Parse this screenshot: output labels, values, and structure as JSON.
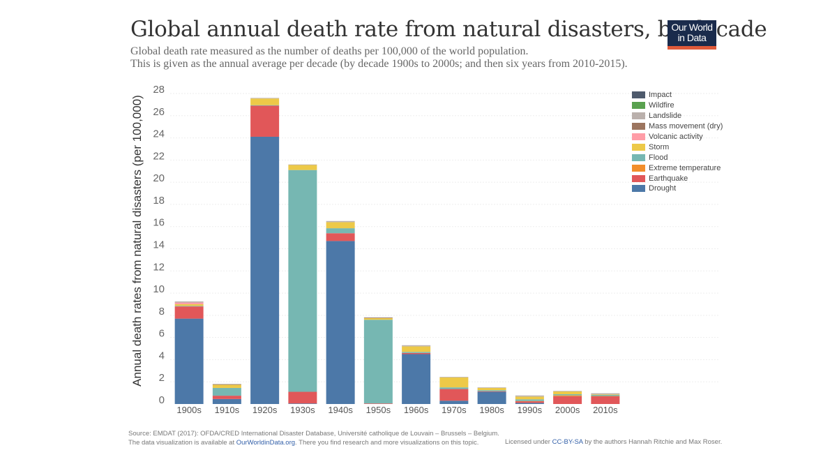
{
  "header": {
    "title": "Global annual death rate from natural disasters, by decade",
    "subtitle_line1": "Global death rate measured as the number of deaths per 100,000 of the world population.",
    "subtitle_line2": "This is given as the annual average per decade (by decade 1900s to 2000s; and then six years from 2010-2015).",
    "logo_line1": "Our World",
    "logo_line2": "in Data"
  },
  "footer": {
    "source": "Source: EMDAT (2017): OFDA/CRED International Disaster Database, Université catholique de Louvain – Brussels – Belgium.",
    "availability_prefix": "The data visualization is available at ",
    "availability_link": "OurWorldinData.org",
    "availability_suffix": ". There you find research and more visualizations on this topic.",
    "license_prefix": "Licensed under ",
    "license_link": "CC-BY-SA",
    "license_suffix": " by the authors Hannah Ritchie and Max Roser."
  },
  "chart_data": {
    "type": "bar",
    "stacked": true,
    "title": "Global annual death rate from natural disasters, by decade",
    "xlabel": "",
    "ylabel": "Annual death rates from natural disasters (per 100,000)",
    "ylim": [
      0,
      28
    ],
    "yticks": [
      0,
      2,
      4,
      6,
      8,
      10,
      12,
      14,
      16,
      18,
      20,
      22,
      24,
      26,
      28
    ],
    "grid": true,
    "legend_position": "right",
    "categories": [
      "1900s",
      "1910s",
      "1920s",
      "1930s",
      "1940s",
      "1950s",
      "1960s",
      "1970s",
      "1980s",
      "1990s",
      "2000s",
      "2010s"
    ],
    "series": [
      {
        "name": "Drought",
        "color": "#4c78a8",
        "values": [
          7.7,
          0.45,
          24.1,
          0.05,
          14.7,
          0.0,
          4.5,
          0.3,
          1.1,
          0.1,
          0.0,
          0.0
        ]
      },
      {
        "name": "Earthquake",
        "color": "#e15759",
        "values": [
          1.1,
          0.3,
          2.8,
          1.05,
          0.7,
          0.05,
          0.1,
          1.05,
          0.05,
          0.15,
          0.7,
          0.7
        ]
      },
      {
        "name": "Extreme temperature",
        "color": "#f28e2b",
        "values": [
          0.0,
          0.0,
          0.0,
          0.0,
          0.0,
          0.0,
          0.0,
          0.0,
          0.0,
          0.02,
          0.08,
          0.02
        ]
      },
      {
        "name": "Flood",
        "color": "#76b7b2",
        "values": [
          0.05,
          0.7,
          0.05,
          20.0,
          0.45,
          7.55,
          0.1,
          0.15,
          0.1,
          0.15,
          0.1,
          0.1
        ]
      },
      {
        "name": "Storm",
        "color": "#edc948",
        "values": [
          0.15,
          0.3,
          0.6,
          0.45,
          0.55,
          0.15,
          0.5,
          0.9,
          0.2,
          0.25,
          0.25,
          0.05
        ]
      },
      {
        "name": "Volcanic activity",
        "color": "#ff9da7",
        "values": [
          0.15,
          0.0,
          0.0,
          0.0,
          0.0,
          0.0,
          0.0,
          0.0,
          0.0,
          0.0,
          0.0,
          0.0
        ]
      },
      {
        "name": "Mass movement (dry)",
        "color": "#9c755f",
        "values": [
          0.0,
          0.02,
          0.0,
          0.0,
          0.0,
          0.02,
          0.0,
          0.0,
          0.0,
          0.0,
          0.0,
          0.0
        ]
      },
      {
        "name": "Landslide",
        "color": "#bab0ac",
        "values": [
          0.1,
          0.05,
          0.05,
          0.05,
          0.1,
          0.05,
          0.1,
          0.05,
          0.05,
          0.1,
          0.05,
          0.1
        ]
      },
      {
        "name": "Wildfire",
        "color": "#59a14f",
        "values": [
          0.0,
          0.0,
          0.0,
          0.0,
          0.0,
          0.0,
          0.0,
          0.0,
          0.0,
          0.0,
          0.0,
          0.0
        ]
      },
      {
        "name": "Impact",
        "color": "#4e5a6c",
        "values": [
          0.0,
          0.0,
          0.0,
          0.0,
          0.0,
          0.0,
          0.0,
          0.0,
          0.0,
          0.0,
          0.0,
          0.0
        ]
      }
    ],
    "legend_order": [
      "Impact",
      "Wildfire",
      "Landslide",
      "Mass movement (dry)",
      "Volcanic activity",
      "Storm",
      "Flood",
      "Extreme temperature",
      "Earthquake",
      "Drought"
    ]
  }
}
